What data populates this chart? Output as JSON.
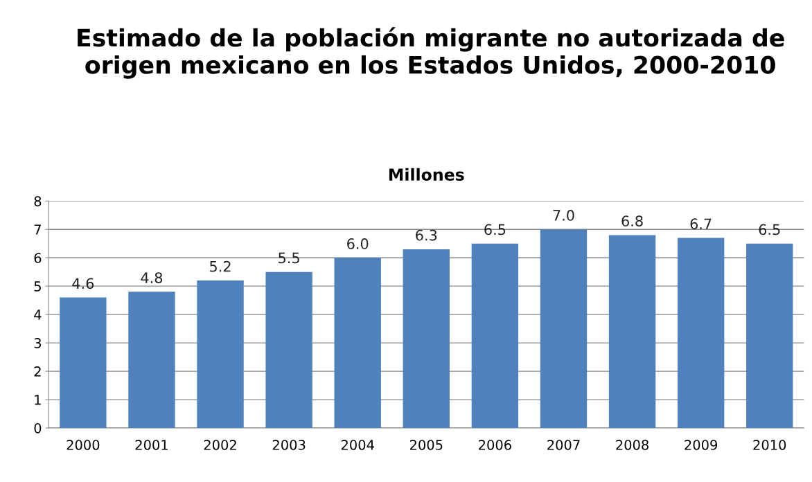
{
  "chart_data": {
    "type": "bar",
    "title": "Estimado de la población migrante no autorizada de origen mexicano en los Estados Unidos, 2000-2010",
    "subtitle": "Millones",
    "categories": [
      "2000",
      "2001",
      "2002",
      "2003",
      "2004",
      "2005",
      "2006",
      "2007",
      "2008",
      "2009",
      "2010"
    ],
    "values": [
      4.6,
      4.8,
      5.2,
      5.5,
      6.0,
      6.3,
      6.5,
      7.0,
      6.8,
      6.7,
      6.5
    ],
    "value_labels": [
      "4.6",
      "4.8",
      "5.2",
      "5.5",
      "6.0",
      "6.3",
      "6.5",
      "7.0",
      "6.8",
      "6.7",
      "6.5"
    ],
    "color": "#4f81bd",
    "ylim": [
      0,
      8
    ],
    "yticks": [
      0,
      1,
      2,
      3,
      4,
      5,
      6,
      7,
      8
    ],
    "grid": "y"
  }
}
